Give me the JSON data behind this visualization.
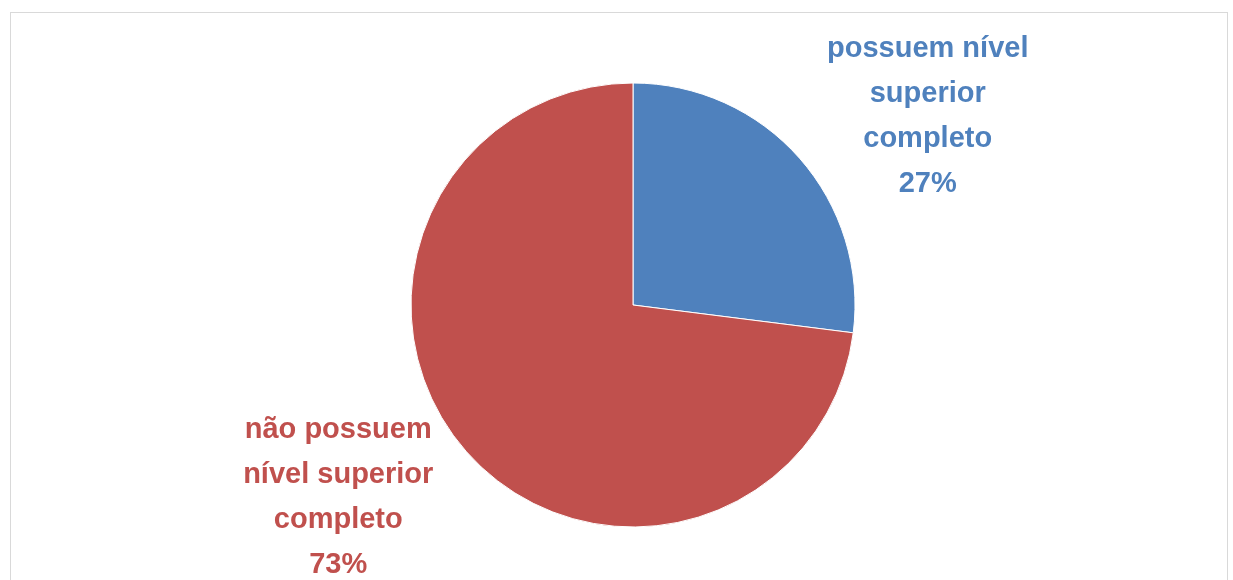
{
  "chart_data": {
    "type": "pie",
    "categories": [
      "possuem nível superior completo",
      "não possuem nível superior completo"
    ],
    "values": [
      27,
      73
    ],
    "colors": [
      "#4f81bd",
      "#c0504d"
    ],
    "value_labels": [
      "27%",
      "73%"
    ],
    "legend": false
  }
}
